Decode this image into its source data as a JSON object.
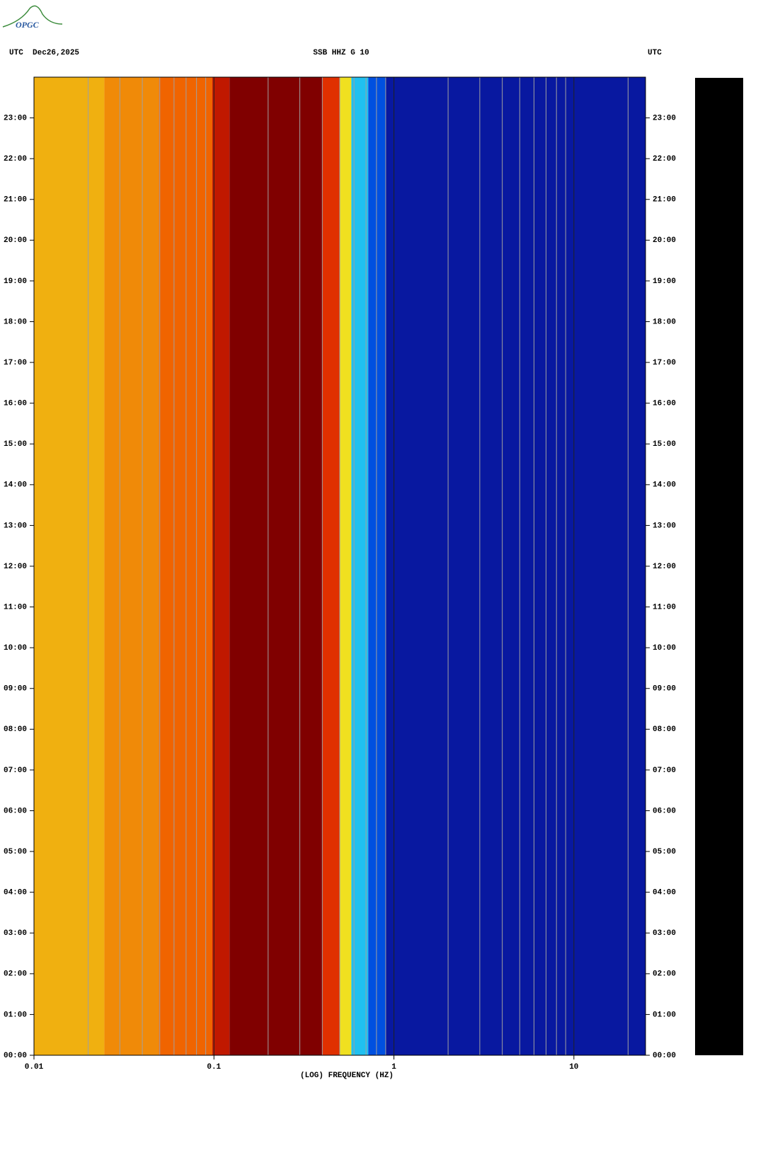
{
  "logo": "OPGC",
  "chart_data": {
    "type": "spectrogram",
    "title": "SSB HHZ G 10",
    "left_label": "UTC  Dec26,2025",
    "right_label": "UTC",
    "xlabel": "(LOG) FREQUENCY (HZ)",
    "xlog": true,
    "xlim": [
      0.01,
      25
    ],
    "xticks": [
      0.01,
      0.1,
      1,
      10
    ],
    "xminorticks": [
      0.02,
      0.03,
      0.04,
      0.05,
      0.06,
      0.07,
      0.08,
      0.09,
      0.2,
      0.3,
      0.4,
      0.5,
      0.6,
      0.7,
      0.8,
      0.9,
      2,
      3,
      4,
      5,
      6,
      7,
      8,
      9,
      20
    ],
    "ylim": [
      0,
      24
    ],
    "yticks": [
      {
        "value": 0,
        "label": "00:00"
      },
      {
        "value": 1,
        "label": "01:00"
      },
      {
        "value": 2,
        "label": "02:00"
      },
      {
        "value": 3,
        "label": "03:00"
      },
      {
        "value": 4,
        "label": "04:00"
      },
      {
        "value": 5,
        "label": "05:00"
      },
      {
        "value": 6,
        "label": "06:00"
      },
      {
        "value": 7,
        "label": "07:00"
      },
      {
        "value": 8,
        "label": "08:00"
      },
      {
        "value": 9,
        "label": "09:00"
      },
      {
        "value": 10,
        "label": "10:00"
      },
      {
        "value": 11,
        "label": "11:00"
      },
      {
        "value": 12,
        "label": "12:00"
      },
      {
        "value": 13,
        "label": "13:00"
      },
      {
        "value": 14,
        "label": "14:00"
      },
      {
        "value": 15,
        "label": "15:00"
      },
      {
        "value": 16,
        "label": "16:00"
      },
      {
        "value": 17,
        "label": "17:00"
      },
      {
        "value": 18,
        "label": "18:00"
      },
      {
        "value": 19,
        "label": "19:00"
      },
      {
        "value": 20,
        "label": "20:00"
      },
      {
        "value": 21,
        "label": "21:00"
      },
      {
        "value": 22,
        "label": "22:00"
      },
      {
        "value": 23,
        "label": "23:00"
      }
    ],
    "bands": [
      {
        "from": 0.01,
        "to": 0.0246,
        "color": "#f0b010"
      },
      {
        "from": 0.0246,
        "to": 0.0494,
        "color": "#f08a08"
      },
      {
        "from": 0.0494,
        "to": 0.098,
        "color": "#f06400"
      },
      {
        "from": 0.098,
        "to": 0.122,
        "color": "#c01800"
      },
      {
        "from": 0.122,
        "to": 0.4,
        "color": "#800000"
      },
      {
        "from": 0.4,
        "to": 0.5,
        "color": "#e03000"
      },
      {
        "from": 0.5,
        "to": 0.58,
        "color": "#f0e020"
      },
      {
        "from": 0.58,
        "to": 0.72,
        "color": "#20c0f0"
      },
      {
        "from": 0.72,
        "to": 0.9,
        "color": "#0050e0"
      },
      {
        "from": 0.9,
        "to": 25,
        "color": "#0818a0"
      }
    ]
  }
}
